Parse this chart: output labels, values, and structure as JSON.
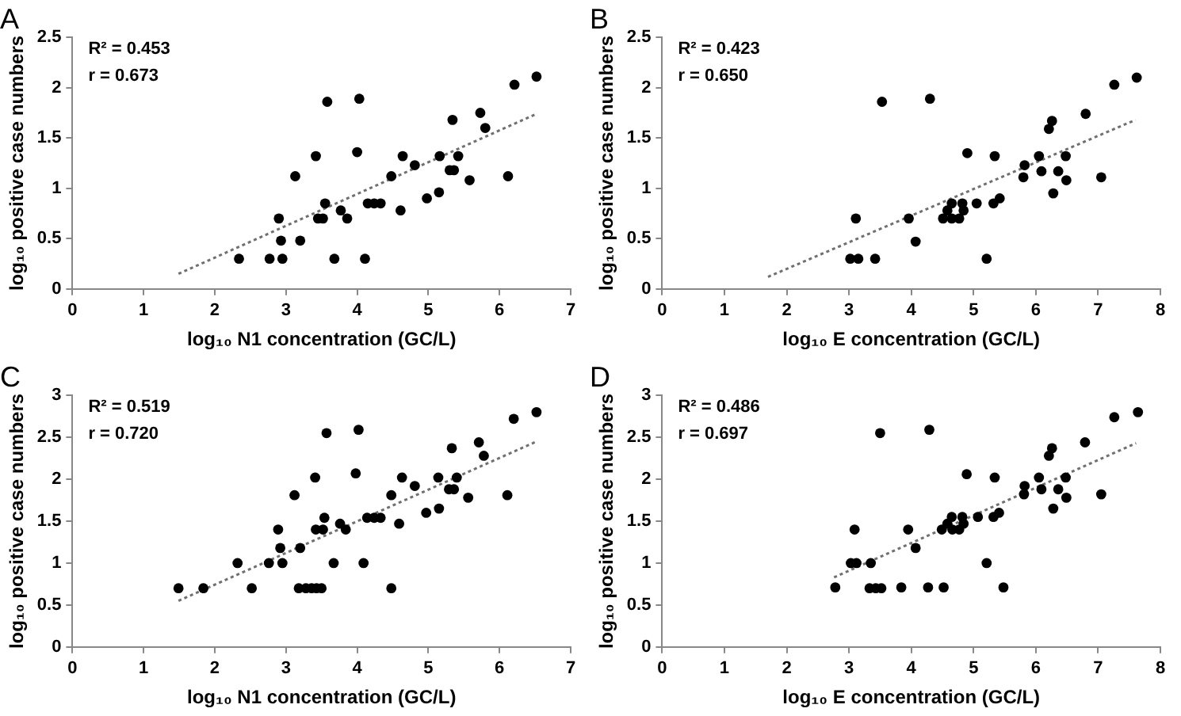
{
  "chart_data": [
    {
      "type": "scatter",
      "title": "A",
      "xlabel": "log₁₀ N1 concentration (GC/L)",
      "ylabel": "log₁₀ positive case numbers",
      "annotations": [
        "R² = 0.453",
        "r = 0.673"
      ],
      "xlim": [
        0,
        7
      ],
      "xticks": [
        0,
        1,
        2,
        3,
        4,
        5,
        6,
        7
      ],
      "ylim": [
        0,
        2.5
      ],
      "yticks": [
        0,
        0.5,
        1,
        1.5,
        2,
        2.5
      ],
      "grid": false,
      "legend": false,
      "series": [
        {
          "type": "scatter",
          "marker": "circle",
          "color": "#000000",
          "x": [
            2.34,
            2.77,
            2.95,
            2.9,
            2.93,
            3.2,
            3.13,
            3.42,
            3.45,
            3.52,
            3.55,
            3.58,
            3.68,
            3.77,
            3.86,
            4.0,
            4.03,
            4.11,
            4.15,
            4.24,
            4.33,
            4.48,
            4.61,
            4.64,
            4.81,
            4.98,
            5.15,
            5.16,
            5.3,
            5.36,
            5.34,
            5.42,
            5.58,
            5.73,
            5.8,
            6.12,
            6.21,
            6.52
          ],
          "values": [
            0.3,
            0.3,
            0.3,
            0.7,
            0.48,
            0.48,
            1.12,
            1.32,
            0.7,
            0.7,
            0.85,
            1.86,
            0.3,
            0.78,
            0.7,
            1.36,
            1.89,
            0.3,
            0.85,
            0.85,
            0.85,
            1.12,
            0.78,
            1.32,
            1.23,
            0.9,
            0.96,
            1.32,
            1.18,
            1.18,
            1.68,
            1.32,
            1.08,
            1.75,
            1.6,
            1.12,
            2.03,
            2.11
          ]
        },
        {
          "type": "line",
          "marker": "none",
          "line_style": "dotted",
          "color": "#707070",
          "x": [
            1.49,
            6.52
          ],
          "values": [
            0.15,
            1.74
          ]
        }
      ]
    },
    {
      "type": "scatter",
      "title": "B",
      "xlabel": "log₁₀ E concentration (GC/L)",
      "ylabel": "log₁₀ positive case numbers",
      "annotations": [
        "R² = 0.423",
        "r = 0.650"
      ],
      "xlim": [
        0,
        8
      ],
      "xticks": [
        0,
        1,
        2,
        3,
        4,
        5,
        6,
        7,
        8
      ],
      "ylim": [
        0,
        2.5
      ],
      "yticks": [
        0,
        0.5,
        1,
        1.5,
        2,
        2.5
      ],
      "grid": false,
      "legend": false,
      "series": [
        {
          "type": "scatter",
          "marker": "circle",
          "color": "#000000",
          "x": [
            3.02,
            3.15,
            3.11,
            3.42,
            3.53,
            3.96,
            4.07,
            4.3,
            4.51,
            4.58,
            4.65,
            4.65,
            4.77,
            4.82,
            4.84,
            4.9,
            5.05,
            5.21,
            5.32,
            5.34,
            5.42,
            5.8,
            5.82,
            6.05,
            6.09,
            6.21,
            6.26,
            6.28,
            6.36,
            6.48,
            6.49,
            6.8,
            7.05,
            7.26,
            7.62
          ],
          "values": [
            0.3,
            0.3,
            0.7,
            0.3,
            1.86,
            0.7,
            0.47,
            1.89,
            0.7,
            0.78,
            0.7,
            0.85,
            0.7,
            0.85,
            0.78,
            1.35,
            0.85,
            0.3,
            0.85,
            1.32,
            0.9,
            1.11,
            1.23,
            1.32,
            1.17,
            1.59,
            1.67,
            0.95,
            1.17,
            1.32,
            1.08,
            1.74,
            1.11,
            2.03,
            2.1
          ]
        },
        {
          "type": "line",
          "marker": "none",
          "line_style": "dotted",
          "color": "#707070",
          "x": [
            1.7,
            7.6
          ],
          "values": [
            0.12,
            1.68
          ]
        }
      ]
    },
    {
      "type": "scatter",
      "title": "C",
      "xlabel": "log₁₀ N1 concentration (GC/L)",
      "ylabel": "log₁₀ positive case numbers",
      "annotations": [
        "R² = 0.519",
        "r = 0.720"
      ],
      "xlim": [
        0,
        7
      ],
      "xticks": [
        0,
        1,
        2,
        3,
        4,
        5,
        6,
        7
      ],
      "ylim": [
        0,
        3
      ],
      "yticks": [
        0,
        0.5,
        1,
        1.5,
        2,
        2.5,
        3
      ],
      "grid": false,
      "legend": false,
      "series": [
        {
          "type": "scatter",
          "marker": "circle",
          "color": "#000000",
          "x": [
            1.49,
            1.84,
            2.32,
            2.52,
            2.76,
            2.89,
            2.92,
            2.95,
            3.12,
            3.18,
            3.2,
            3.28,
            3.36,
            3.43,
            3.5,
            3.41,
            3.42,
            3.52,
            3.54,
            3.57,
            3.67,
            3.76,
            3.84,
            3.98,
            4.02,
            4.09,
            4.14,
            4.24,
            4.33,
            4.48,
            4.48,
            4.59,
            4.63,
            4.81,
            4.97,
            5.14,
            5.15,
            5.29,
            5.36,
            5.33,
            5.4,
            5.56,
            5.71,
            5.78,
            6.11,
            6.2,
            6.52
          ],
          "values": [
            0.7,
            0.7,
            1.0,
            0.7,
            1.0,
            1.4,
            1.18,
            1.0,
            1.81,
            0.7,
            1.18,
            0.7,
            0.7,
            0.7,
            0.7,
            2.02,
            1.4,
            1.4,
            1.54,
            2.55,
            1.0,
            1.47,
            1.4,
            2.07,
            2.59,
            1.0,
            1.54,
            1.54,
            1.54,
            1.81,
            0.7,
            1.47,
            2.02,
            1.92,
            1.6,
            2.02,
            1.65,
            1.88,
            1.88,
            2.37,
            2.02,
            1.78,
            2.44,
            2.28,
            1.81,
            2.72,
            2.8
          ]
        },
        {
          "type": "line",
          "marker": "none",
          "line_style": "dotted",
          "color": "#707070",
          "x": [
            1.49,
            6.52
          ],
          "values": [
            0.55,
            2.45
          ]
        }
      ]
    },
    {
      "type": "scatter",
      "title": "D",
      "xlabel": "log₁₀ E concentration (GC/L)",
      "ylabel": "log₁₀ positive case numbers",
      "annotations": [
        "R² = 0.486",
        "r = 0.697"
      ],
      "xlim": [
        0,
        8
      ],
      "xticks": [
        0,
        1,
        2,
        3,
        4,
        5,
        6,
        7,
        8
      ],
      "ylim": [
        0,
        3
      ],
      "yticks": [
        0,
        0.5,
        1,
        1.5,
        2,
        2.5,
        3
      ],
      "grid": false,
      "legend": false,
      "series": [
        {
          "type": "scatter",
          "marker": "circle",
          "color": "#000000",
          "x": [
            2.78,
            3.03,
            3.09,
            3.12,
            3.35,
            3.33,
            3.43,
            3.52,
            3.5,
            3.84,
            3.95,
            4.07,
            4.27,
            4.29,
            4.49,
            4.52,
            4.58,
            4.65,
            4.66,
            4.77,
            4.82,
            4.84,
            4.89,
            5.07,
            5.21,
            5.32,
            5.34,
            5.41,
            5.48,
            5.81,
            5.82,
            6.05,
            6.09,
            6.21,
            6.26,
            6.28,
            6.36,
            6.48,
            6.49,
            6.79,
            7.05,
            7.26,
            7.64
          ],
          "values": [
            0.71,
            1.0,
            1.4,
            1.0,
            1.0,
            0.7,
            0.7,
            0.7,
            2.55,
            0.71,
            1.4,
            1.18,
            0.71,
            2.59,
            1.4,
            0.71,
            1.47,
            1.55,
            1.4,
            1.4,
            1.55,
            1.47,
            2.06,
            1.55,
            1.0,
            1.55,
            2.02,
            1.6,
            0.71,
            1.82,
            1.92,
            2.02,
            1.88,
            2.28,
            2.37,
            1.65,
            1.88,
            2.02,
            1.78,
            2.44,
            1.82,
            2.74,
            2.8
          ]
        },
        {
          "type": "line",
          "marker": "none",
          "line_style": "dotted",
          "color": "#707070",
          "x": [
            2.76,
            7.61
          ],
          "values": [
            0.83,
            2.43
          ]
        }
      ]
    }
  ]
}
